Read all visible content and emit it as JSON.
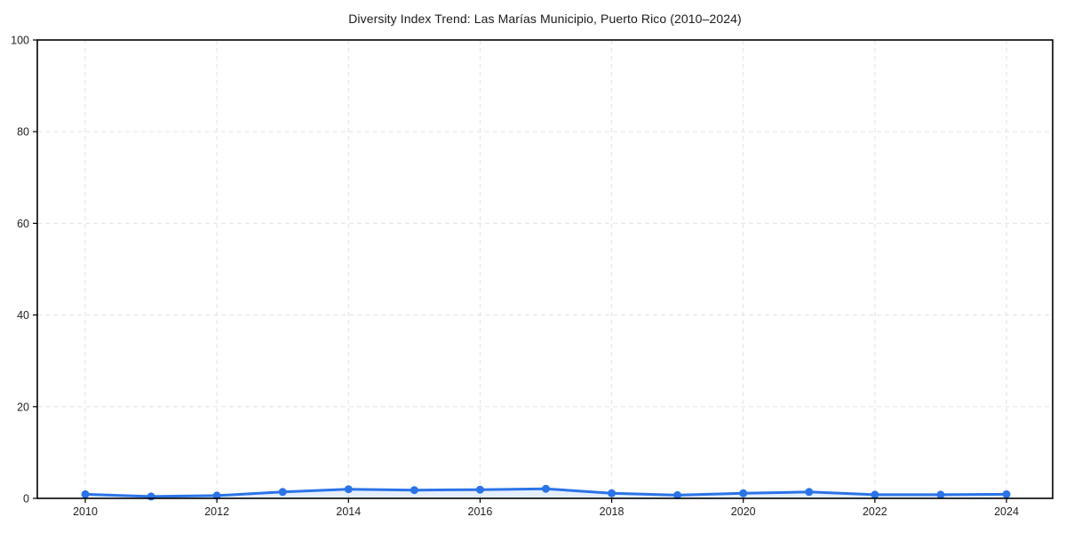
{
  "chart_data": {
    "type": "line",
    "title": "Diversity Index Trend: Las Marías Municipio, Puerto Rico (2010–2024)",
    "xlabel": "",
    "ylabel": "",
    "x": [
      2010,
      2011,
      2012,
      2013,
      2014,
      2015,
      2016,
      2017,
      2018,
      2019,
      2020,
      2021,
      2022,
      2023,
      2024
    ],
    "values": [
      0.9,
      0.4,
      0.6,
      1.4,
      2.0,
      1.8,
      1.9,
      2.1,
      1.1,
      0.7,
      1.1,
      1.4,
      0.8,
      0.8,
      0.9
    ],
    "ylim": [
      0,
      100
    ],
    "yticks": [
      0,
      20,
      40,
      60,
      80,
      100
    ],
    "xticks": [
      2010,
      2012,
      2014,
      2016,
      2018,
      2020,
      2022,
      2024
    ],
    "grid": "dashed",
    "legend": "none",
    "marker": "circle",
    "colors": {
      "line": "#2b74e8",
      "marker": "#2b74e8",
      "area_fill": "rgba(43,116,232,0.12)",
      "gridline": "#e2e2e2",
      "spine": "#000000",
      "tick_label": "#222222",
      "title": "#1a1a1a",
      "background": "#ffffff"
    }
  }
}
